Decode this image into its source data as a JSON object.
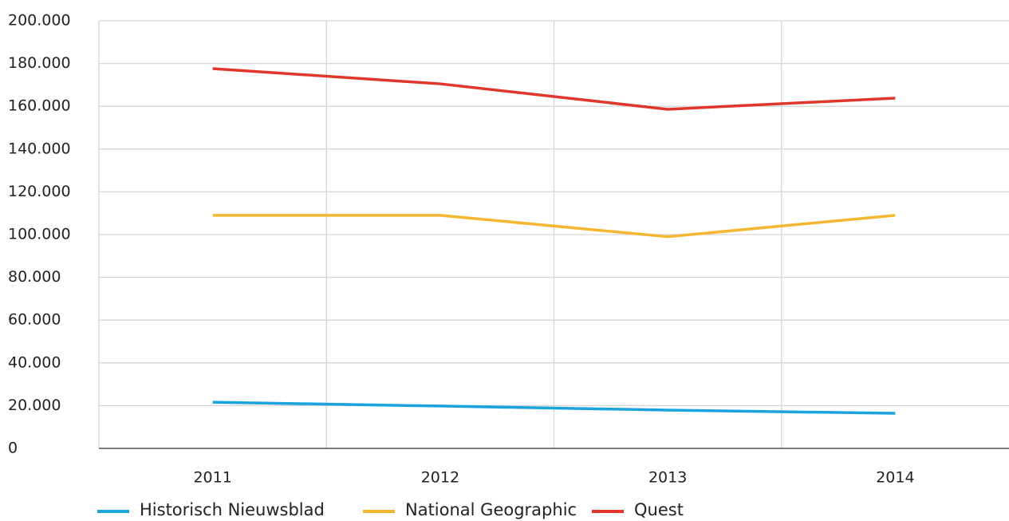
{
  "chart_data": {
    "type": "line",
    "categories": [
      "2011",
      "2012",
      "2013",
      "2014"
    ],
    "series": [
      {
        "name": "Historisch Nieuwsblad",
        "color": "#1aa3dc",
        "values": [
          21600,
          19800,
          17900,
          16400
        ]
      },
      {
        "name": "National Geographic",
        "color": "#f5b731",
        "values": [
          109000,
          109000,
          99000,
          109000
        ]
      },
      {
        "name": "Quest",
        "color": "#e0362c",
        "values": [
          177600,
          170500,
          158600,
          163800
        ]
      }
    ],
    "ylim": [
      0,
      200000
    ],
    "yticks": [
      0,
      {
        "value": 20000,
        "label": "20.000"
      },
      {
        "value": 40000,
        "label": "40.000"
      },
      {
        "value": 60000,
        "label": "60.000"
      },
      {
        "value": 80000,
        "label": "80.000"
      },
      {
        "value": 100000,
        "label": "100.000"
      },
      {
        "value": 120000,
        "label": "120.000"
      },
      {
        "value": 140000,
        "label": "140.000"
      },
      {
        "value": 160000,
        "label": "160.000"
      },
      {
        "value": 180000,
        "label": "180.000"
      },
      {
        "value": 200000,
        "label": "200.000"
      }
    ],
    "grid": true,
    "legend": "bottom"
  }
}
